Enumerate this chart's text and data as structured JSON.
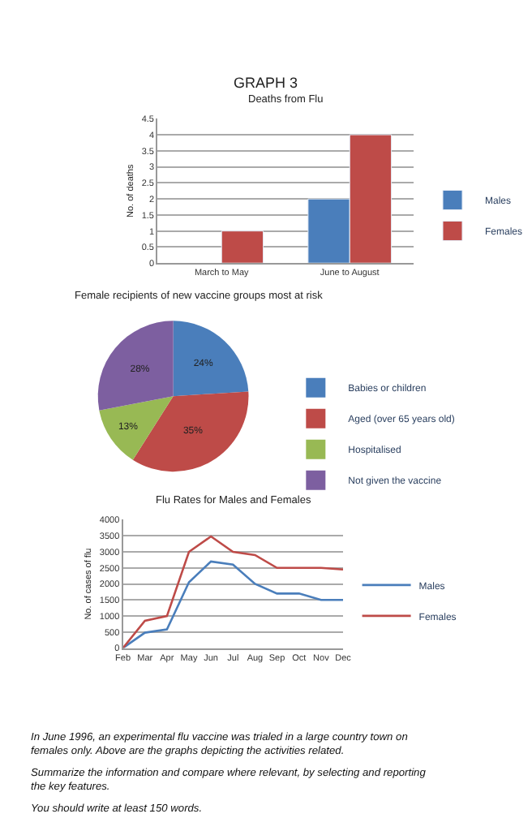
{
  "chart_data": [
    {
      "type": "bar",
      "title": "Deaths from Flu",
      "ylabel": "No. of deaths",
      "categories": [
        "March to May",
        "June to August"
      ],
      "series": [
        {
          "name": "Males",
          "color": "#4a7ebb",
          "values": [
            null,
            2
          ]
        },
        {
          "name": "Females",
          "color": "#be4b48",
          "values": [
            1,
            4
          ]
        }
      ],
      "ylim": [
        0,
        4.5
      ],
      "yticks": [
        0,
        0.5,
        1,
        1.5,
        2,
        2.5,
        3,
        3.5,
        4,
        4.5
      ],
      "grid": "y",
      "legend": "right",
      "annotations": [
        "GRAPH 3"
      ]
    },
    {
      "type": "pie",
      "title": "Female recipients of new vaccine groups most at risk",
      "categories": [
        "Babies or children",
        "Aged (over 65 years old)",
        "Hospitalised",
        "Not given the vaccine"
      ],
      "values": [
        24,
        35,
        13,
        28
      ],
      "colors": [
        "#4a7ebb",
        "#be4b48",
        "#98b954",
        "#7d5fa0"
      ],
      "value_labels": [
        "24%",
        "35%",
        "13%",
        "28%"
      ],
      "legend": "right"
    },
    {
      "type": "line",
      "title": "Flu Rates for Males and Females",
      "ylabel": "No. of cases of flu",
      "categories": [
        "Feb",
        "Mar",
        "Apr",
        "May",
        "Jun",
        "Jul",
        "Aug",
        "Sep",
        "Oct",
        "Nov",
        "Dec"
      ],
      "series": [
        {
          "name": "Males",
          "color": "#4a7ebb",
          "values": [
            0,
            480,
            580,
            2050,
            2700,
            2600,
            2000,
            1700,
            1700,
            1500,
            1500
          ]
        },
        {
          "name": "Females",
          "color": "#be4b48",
          "values": [
            0,
            850,
            1000,
            3000,
            3480,
            3000,
            2900,
            2500,
            2500,
            2500,
            2450
          ]
        }
      ],
      "ylim": [
        0,
        4000
      ],
      "yticks": [
        0,
        500,
        1000,
        1500,
        2000,
        2500,
        3000,
        3500,
        4000
      ],
      "grid": "y",
      "legend": "right",
      "marker": "none",
      "line_style": "solid",
      "annotations": [
        "In June 1996, an experimental flu vaccine was trialed in a large country town on females only. Above are the graphs depicting the activities related.",
        "Summarize the information and compare where relevant, by selecting and reporting the key features.",
        "You should write at least 150 words."
      ]
    }
  ]
}
